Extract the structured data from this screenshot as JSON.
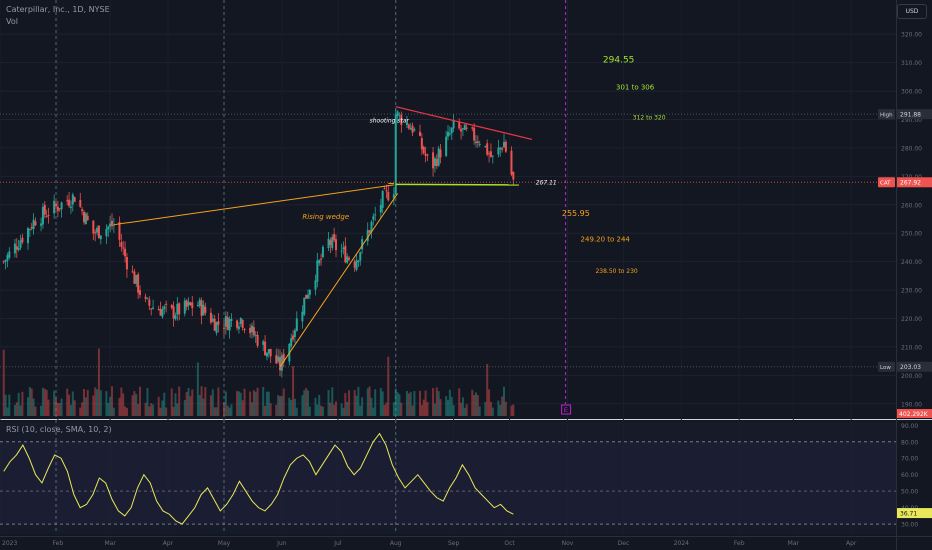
{
  "header": {
    "symbol_line": "Caterpillar, Inc., 1D, NYSE",
    "vol_label": "Vol",
    "currency_button": "USD",
    "rsi_label": "RSI (10, close, SMA, 10, 2)"
  },
  "colors": {
    "background": "#131722",
    "up": "#26a69a",
    "down": "#ef5350",
    "wedge_lines": "#f7a21b",
    "resistance_line": "#f23645",
    "support_line": "#a5e32b",
    "target_green": "#a5e32b",
    "target_orange": "#f7a21b",
    "rsi_line": "#e8e85a",
    "event_marker": "#c21fd6"
  },
  "chart_data": [
    {
      "type": "candlestick",
      "symbol": "CAT",
      "x_tick_labels": [
        "2023",
        "Feb",
        "Mar",
        "Apr",
        "May",
        "Jun",
        "Jul",
        "Aug",
        "Sep",
        "Oct",
        "Nov",
        "Dec",
        "2024",
        "Feb",
        "Mar",
        "Apr"
      ],
      "y_tick_labels": [
        "190.00",
        "200.00",
        "210.00",
        "220.00",
        "230.00",
        "240.00",
        "250.00",
        "260.00",
        "270.00",
        "280.00",
        "290.00",
        "300.00",
        "310.00",
        "320.00"
      ],
      "ylim": [
        185,
        325
      ],
      "price_path_approx": [
        [
          "2023-01-03",
          240
        ],
        [
          "2023-01-20",
          255
        ],
        [
          "2023-02-10",
          263
        ],
        [
          "2023-02-20",
          250
        ],
        [
          "2023-03-03",
          253
        ],
        [
          "2023-03-10",
          240
        ],
        [
          "2023-03-20",
          225
        ],
        [
          "2023-04-03",
          222
        ],
        [
          "2023-04-17",
          225
        ],
        [
          "2023-04-27",
          218
        ],
        [
          "2023-05-10",
          220
        ],
        [
          "2023-05-31",
          203
        ],
        [
          "2023-06-15",
          230
        ],
        [
          "2023-06-26",
          247
        ],
        [
          "2023-07-10",
          240
        ],
        [
          "2023-07-25",
          262
        ],
        [
          "2023-07-31",
          266
        ],
        [
          "2023-08-01",
          292
        ],
        [
          "2023-08-10",
          287
        ],
        [
          "2023-08-20",
          273
        ],
        [
          "2023-09-01",
          287
        ],
        [
          "2023-09-15",
          283
        ],
        [
          "2023-09-22",
          276
        ],
        [
          "2023-09-28",
          282
        ],
        [
          "2023-10-03",
          268
        ]
      ],
      "annotations": [
        {
          "text": "shooting star",
          "kind": "label"
        },
        {
          "text": "Rising wedge",
          "kind": "label"
        },
        {
          "text": "267.11",
          "kind": "support_level"
        },
        {
          "text": "294.55",
          "kind": "target_up"
        },
        {
          "text": "301 to 306",
          "kind": "target_up"
        },
        {
          "text": "312 to 320",
          "kind": "target_up"
        },
        {
          "text": "255.95",
          "kind": "target_down"
        },
        {
          "text": "249.20 to 244",
          "kind": "target_down"
        },
        {
          "text": "238.50 to 230",
          "kind": "target_down"
        }
      ],
      "price_labels": [
        {
          "label": "High",
          "value": "291.88"
        },
        {
          "label": "CAT",
          "value": "267.92"
        },
        {
          "label": "Low",
          "value": "203.03"
        }
      ],
      "volume_label": "402.292K",
      "event_markers": [
        "E"
      ]
    },
    {
      "type": "line",
      "name": "RSI (10, close, SMA, 10, 2)",
      "y_tick_labels": [
        "30.00",
        "40.00",
        "50.00",
        "60.00",
        "70.00",
        "80.00",
        "90.00"
      ],
      "ylim": [
        24,
        92
      ],
      "bands": {
        "upper": 80,
        "middle": 50,
        "lower": 30
      },
      "last_value": "36.71",
      "values": [
        62,
        68,
        72,
        78,
        70,
        60,
        55,
        64,
        72,
        70,
        62,
        48,
        40,
        42,
        48,
        58,
        55,
        45,
        38,
        35,
        40,
        52,
        60,
        55,
        44,
        38,
        36,
        32,
        30,
        35,
        40,
        48,
        52,
        45,
        38,
        42,
        48,
        56,
        50,
        44,
        40,
        38,
        42,
        48,
        58,
        66,
        70,
        72,
        68,
        60,
        66,
        72,
        78,
        74,
        65,
        60,
        64,
        72,
        80,
        85,
        78,
        66,
        58,
        52,
        56,
        60,
        55,
        50,
        46,
        44,
        52,
        58,
        66,
        60,
        52,
        48,
        44,
        40,
        42,
        38,
        36
      ]
    }
  ]
}
